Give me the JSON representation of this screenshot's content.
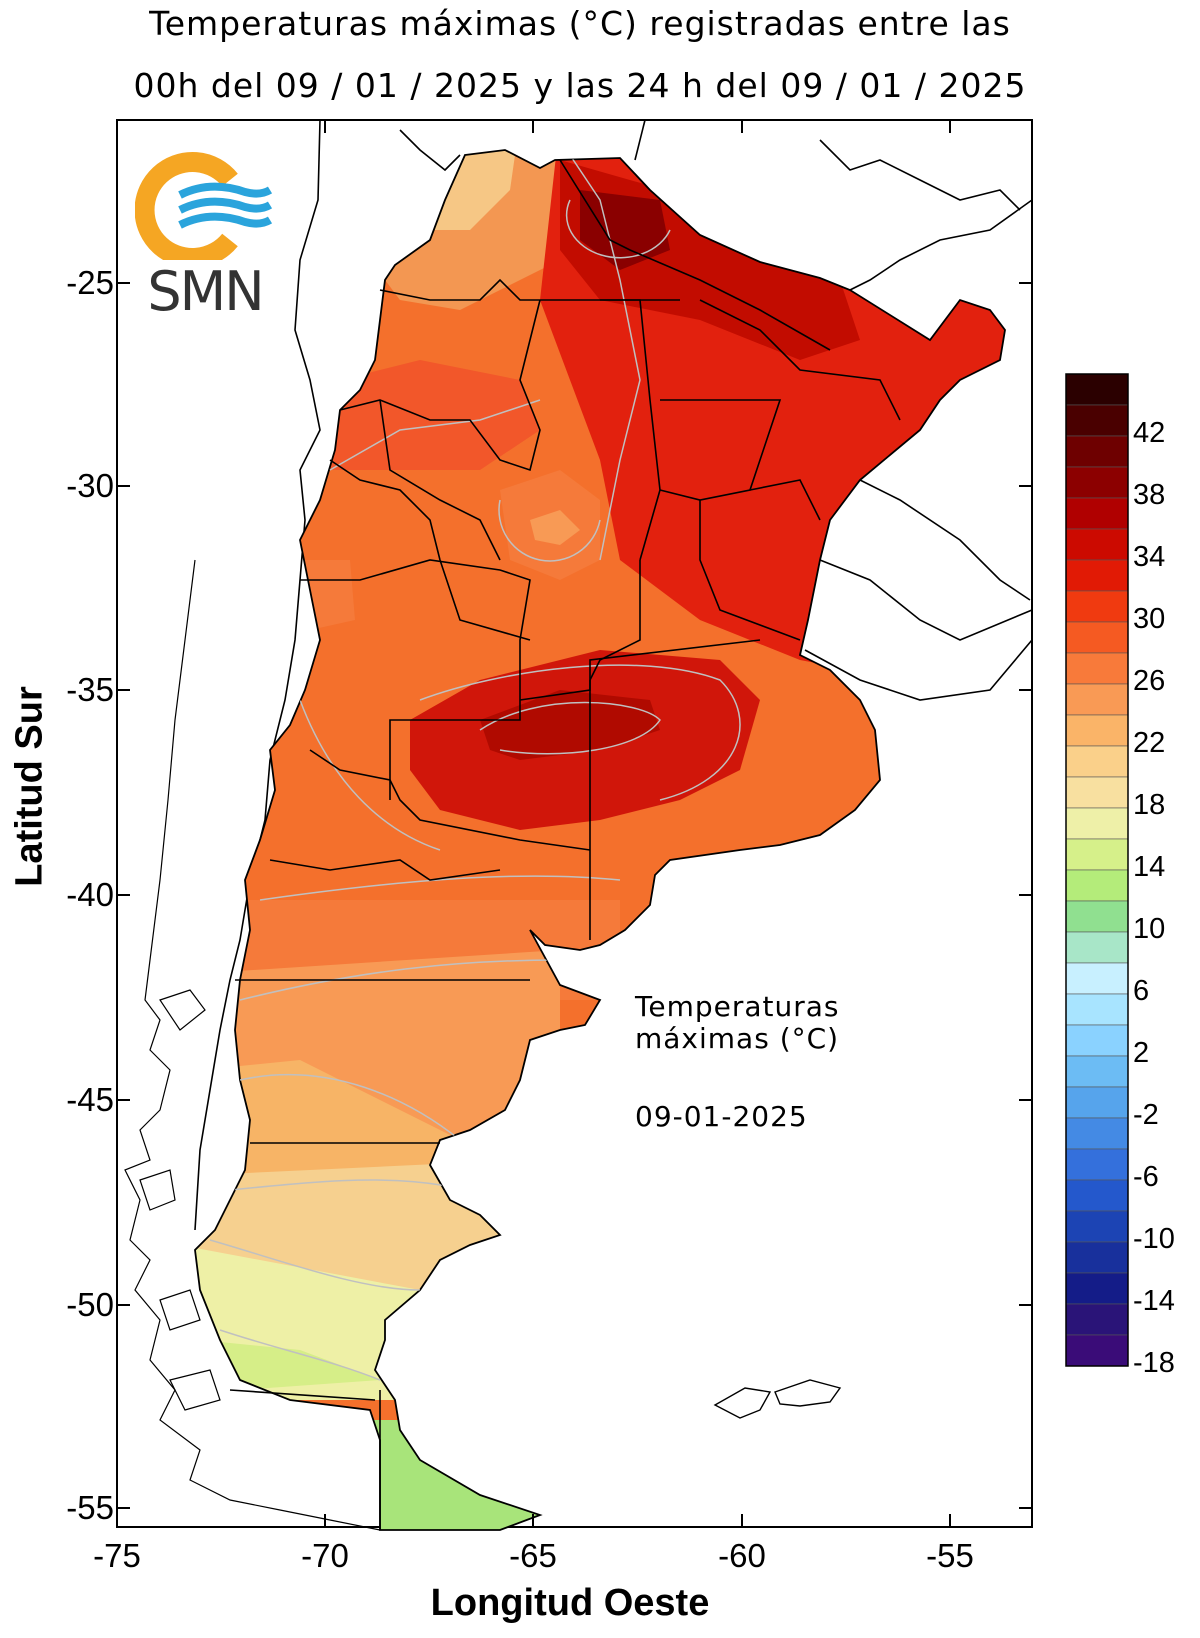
{
  "header": {
    "title_line1": "Temperaturas máximas (°C) registradas entre las",
    "title_line2": "00h del 09 / 01 / 2025 y las 24 h del 09 / 01 / 2025"
  },
  "logo": {
    "text": "SMN",
    "icon": "smn-sun-waves-logo"
  },
  "annotation": {
    "line1": "Temperaturas",
    "line2": "máximas (°C)",
    "date": "09-01-2025"
  },
  "axes": {
    "xlabel": "Longitud Oeste",
    "ylabel": "Latitud Sur",
    "xticks": [
      "-75",
      "-70",
      "-65",
      "-60",
      "-55"
    ],
    "yticks": [
      "-25",
      "-30",
      "-35",
      "-40",
      "-45",
      "-50",
      "-55"
    ]
  },
  "legend": {
    "labels": [
      "42",
      "38",
      "34",
      "30",
      "26",
      "22",
      "18",
      "14",
      "10",
      "6",
      "2",
      "-2",
      "-6",
      "-10",
      "-14",
      "-18"
    ],
    "colors": [
      "#2b0000",
      "#4a0000",
      "#6e0000",
      "#8c0000",
      "#b00000",
      "#cc0a00",
      "#e11a05",
      "#f03a10",
      "#f55a22",
      "#f87a3a",
      "#f99a55",
      "#fab468",
      "#fad08a",
      "#f8e0a0",
      "#eef0a8",
      "#d6f08a",
      "#b4ec7a",
      "#90e090",
      "#a8e6c8",
      "#c8f0ff",
      "#a8e4ff",
      "#8ad2ff",
      "#6cbcf4",
      "#56a4ec",
      "#448ae4",
      "#3470dc",
      "#2458cc",
      "#1c44b4",
      "#18309c",
      "#141c88",
      "#2a1478",
      "#3a0c78"
    ]
  }
}
